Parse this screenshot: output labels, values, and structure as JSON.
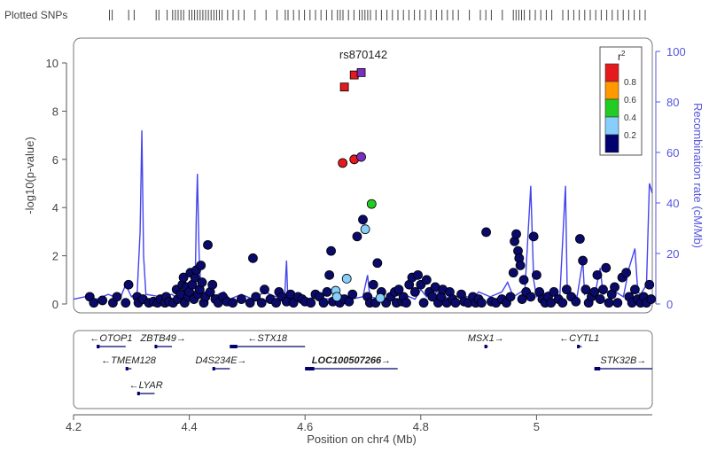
{
  "chart_data": {
    "type": "scatter",
    "strip_label": "Plotted SNPs",
    "lead_snp": "rs870142",
    "xlabel": "Position on chr4 (Mb)",
    "ylabel_left": "-log10(p-value)",
    "ylabel_right": "Recombination rate (cM/Mb)",
    "xlim": [
      4.2,
      5.2
    ],
    "ylim_left": [
      0,
      10.5
    ],
    "ylim_right": [
      0,
      105
    ],
    "x_ticks": [
      "4.2",
      "4.4",
      "4.6",
      "4.8",
      "5"
    ],
    "x_tick_values": [
      4.2,
      4.4,
      4.6,
      4.8,
      5.0
    ],
    "y_ticks_left": [
      "0",
      "2",
      "4",
      "6",
      "8",
      "10"
    ],
    "y_ticks_right": [
      "0",
      "20",
      "40",
      "60",
      "80",
      "100"
    ],
    "legend": {
      "title": "r2",
      "labels": [
        "0.8",
        "0.6",
        "0.4",
        "0.2"
      ],
      "colors": [
        "#e41a1c",
        "#ff9900",
        "#22cc22",
        "#87cefa",
        "#00006e"
      ]
    },
    "highlight_points": [
      {
        "x": 4.668,
        "y": 9.0,
        "shape": "square",
        "color": "#e41a1c"
      },
      {
        "x": 4.685,
        "y": 9.5,
        "shape": "square",
        "color": "#e41a1c"
      },
      {
        "x": 4.697,
        "y": 9.6,
        "shape": "square",
        "color": "#7b2fbe"
      },
      {
        "x": 4.665,
        "y": 5.85,
        "shape": "circle",
        "color": "#e41a1c"
      },
      {
        "x": 4.685,
        "y": 6.0,
        "shape": "circle",
        "color": "#e41a1c"
      },
      {
        "x": 4.697,
        "y": 6.1,
        "shape": "circle",
        "color": "#7b2fbe"
      },
      {
        "x": 4.715,
        "y": 4.15,
        "shape": "circle",
        "color": "#22cc22"
      },
      {
        "x": 4.704,
        "y": 3.1,
        "shape": "circle",
        "color": "#87cefa"
      },
      {
        "x": 4.672,
        "y": 1.05,
        "shape": "circle",
        "color": "#87cefa"
      },
      {
        "x": 4.653,
        "y": 0.55,
        "shape": "circle",
        "color": "#87cefa"
      },
      {
        "x": 4.655,
        "y": 0.3,
        "shape": "circle",
        "color": "#87cefa"
      },
      {
        "x": 4.73,
        "y": 0.25,
        "shape": "circle",
        "color": "#87cefa"
      }
    ],
    "background_points": [
      [
        4.228,
        0.3
      ],
      [
        4.235,
        0.05
      ],
      [
        4.25,
        0.15
      ],
      [
        4.268,
        0.05
      ],
      [
        4.275,
        0.3
      ],
      [
        4.29,
        0.05
      ],
      [
        4.295,
        0.8
      ],
      [
        4.31,
        0.3
      ],
      [
        4.312,
        0.05
      ],
      [
        4.32,
        0.2
      ],
      [
        4.33,
        0.05
      ],
      [
        4.338,
        0.1
      ],
      [
        4.345,
        0.05
      ],
      [
        4.35,
        0.2
      ],
      [
        4.358,
        0.05
      ],
      [
        4.36,
        0.3
      ],
      [
        4.365,
        0.1
      ],
      [
        4.372,
        0.05
      ],
      [
        4.378,
        0.6
      ],
      [
        4.38,
        0.2
      ],
      [
        4.385,
        0.4
      ],
      [
        4.388,
        0.8
      ],
      [
        4.39,
        1.1
      ],
      [
        4.392,
        0.05
      ],
      [
        4.395,
        0.7
      ],
      [
        4.398,
        0.3
      ],
      [
        4.4,
        0.5
      ],
      [
        4.402,
        1.3
      ],
      [
        4.405,
        0.8
      ],
      [
        4.408,
        0.2
      ],
      [
        4.41,
        1.1
      ],
      [
        4.412,
        1.4
      ],
      [
        4.415,
        0.4
      ],
      [
        4.418,
        0.6
      ],
      [
        4.42,
        1.6
      ],
      [
        4.422,
        0.9
      ],
      [
        4.425,
        0.05
      ],
      [
        4.428,
        0.3
      ],
      [
        4.432,
        2.45
      ],
      [
        4.436,
        0.5
      ],
      [
        4.44,
        0.8
      ],
      [
        4.445,
        0.2
      ],
      [
        4.45,
        0.05
      ],
      [
        4.458,
        0.3
      ],
      [
        4.465,
        0.1
      ],
      [
        4.475,
        0.05
      ],
      [
        4.49,
        0.2
      ],
      [
        4.505,
        0.05
      ],
      [
        4.51,
        1.9
      ],
      [
        4.515,
        0.3
      ],
      [
        4.525,
        0.05
      ],
      [
        4.53,
        0.6
      ],
      [
        4.54,
        0.2
      ],
      [
        4.55,
        0.05
      ],
      [
        4.555,
        0.5
      ],
      [
        4.56,
        0.3
      ],
      [
        4.568,
        0.1
      ],
      [
        4.575,
        0.4
      ],
      [
        4.58,
        0.05
      ],
      [
        4.588,
        0.3
      ],
      [
        4.595,
        0.2
      ],
      [
        4.6,
        0.1
      ],
      [
        4.61,
        0.05
      ],
      [
        4.618,
        0.4
      ],
      [
        4.625,
        0.3
      ],
      [
        4.632,
        0.05
      ],
      [
        4.638,
        0.5
      ],
      [
        4.642,
        1.2
      ],
      [
        4.645,
        2.2
      ],
      [
        4.648,
        0.1
      ],
      [
        4.66,
        0.05
      ],
      [
        4.668,
        0.2
      ],
      [
        4.676,
        0.1
      ],
      [
        4.682,
        0.4
      ],
      [
        4.69,
        2.8
      ],
      [
        4.7,
        3.5
      ],
      [
        4.708,
        0.3
      ],
      [
        4.712,
        0.05
      ],
      [
        4.718,
        0.8
      ],
      [
        4.722,
        0.05
      ],
      [
        4.725,
        1.7
      ],
      [
        4.732,
        0.5
      ],
      [
        4.74,
        0.05
      ],
      [
        4.748,
        0.3
      ],
      [
        4.755,
        0.5
      ],
      [
        4.758,
        0.05
      ],
      [
        4.762,
        0.6
      ],
      [
        4.768,
        0.1
      ],
      [
        4.77,
        0.3
      ],
      [
        4.775,
        0.05
      ],
      [
        4.78,
        0.8
      ],
      [
        4.785,
        1.1
      ],
      [
        4.79,
        0.5
      ],
      [
        4.795,
        1.2
      ],
      [
        4.8,
        0.8
      ],
      [
        4.805,
        0.05
      ],
      [
        4.81,
        1.0
      ],
      [
        4.815,
        0.5
      ],
      [
        4.82,
        0.3
      ],
      [
        4.825,
        0.7
      ],
      [
        4.83,
        0.05
      ],
      [
        4.835,
        0.3
      ],
      [
        4.838,
        0.6
      ],
      [
        4.845,
        0.05
      ],
      [
        4.85,
        0.5
      ],
      [
        4.855,
        0.2
      ],
      [
        4.86,
        0.05
      ],
      [
        4.87,
        0.4
      ],
      [
        4.875,
        0.1
      ],
      [
        4.882,
        0.05
      ],
      [
        4.89,
        0.3
      ],
      [
        4.895,
        0.05
      ],
      [
        4.9,
        0.2
      ],
      [
        4.905,
        0.05
      ],
      [
        4.913,
        2.98
      ],
      [
        4.922,
        0.1
      ],
      [
        4.93,
        0.05
      ],
      [
        4.94,
        0.2
      ],
      [
        4.948,
        0.05
      ],
      [
        4.955,
        0.3
      ],
      [
        4.96,
        1.3
      ],
      [
        4.962,
        2.6
      ],
      [
        4.965,
        2.9
      ],
      [
        4.968,
        2.2
      ],
      [
        4.97,
        1.9
      ],
      [
        4.972,
        1.6
      ],
      [
        4.975,
        0.2
      ],
      [
        4.978,
        1.0
      ],
      [
        4.982,
        0.5
      ],
      [
        4.99,
        0.3
      ],
      [
        4.995,
        2.8
      ],
      [
        5.0,
        1.2
      ],
      [
        5.005,
        0.5
      ],
      [
        5.01,
        0.2
      ],
      [
        5.015,
        0.05
      ],
      [
        5.02,
        0.3
      ],
      [
        5.025,
        0.05
      ],
      [
        5.03,
        0.5
      ],
      [
        5.038,
        0.2
      ],
      [
        5.045,
        0.05
      ],
      [
        5.052,
        0.6
      ],
      [
        5.06,
        0.3
      ],
      [
        5.068,
        0.1
      ],
      [
        5.075,
        2.7
      ],
      [
        5.08,
        1.8
      ],
      [
        5.085,
        0.6
      ],
      [
        5.09,
        0.05
      ],
      [
        5.095,
        0.3
      ],
      [
        5.1,
        0.5
      ],
      [
        5.105,
        1.2
      ],
      [
        5.11,
        0.2
      ],
      [
        5.115,
        0.6
      ],
      [
        5.12,
        1.5
      ],
      [
        5.125,
        0.05
      ],
      [
        5.13,
        0.4
      ],
      [
        5.135,
        0.7
      ],
      [
        5.14,
        0.05
      ],
      [
        5.148,
        1.1
      ],
      [
        5.155,
        1.3
      ],
      [
        5.16,
        0.3
      ],
      [
        5.165,
        0.05
      ],
      [
        5.17,
        0.6
      ],
      [
        5.175,
        0.2
      ],
      [
        5.18,
        0.05
      ],
      [
        5.185,
        0.3
      ],
      [
        5.19,
        0.05
      ],
      [
        5.195,
        0.8
      ],
      [
        5.198,
        0.2
      ]
    ],
    "recombination": [
      [
        4.2,
        0.2
      ],
      [
        4.22,
        0.3
      ],
      [
        4.24,
        0.2
      ],
      [
        4.26,
        0.4
      ],
      [
        4.28,
        0.2
      ],
      [
        4.29,
        0.8
      ],
      [
        4.3,
        0.3
      ],
      [
        4.31,
        0.5
      ],
      [
        4.315,
        3.0
      ],
      [
        4.318,
        7.2
      ],
      [
        4.321,
        2.0
      ],
      [
        4.325,
        0.4
      ],
      [
        4.35,
        0.3
      ],
      [
        4.37,
        0.4
      ],
      [
        4.38,
        0.2
      ],
      [
        4.39,
        1.0
      ],
      [
        4.395,
        0.3
      ],
      [
        4.41,
        0.5
      ],
      [
        4.412,
        3.5
      ],
      [
        4.414,
        5.4
      ],
      [
        4.417,
        2.0
      ],
      [
        4.42,
        0.6
      ],
      [
        4.44,
        0.3
      ],
      [
        4.46,
        0.5
      ],
      [
        4.47,
        0.2
      ],
      [
        4.49,
        0.4
      ],
      [
        4.51,
        0.2
      ],
      [
        4.53,
        0.5
      ],
      [
        4.55,
        0.3
      ],
      [
        4.565,
        0.4
      ],
      [
        4.568,
        1.8
      ],
      [
        4.57,
        0.4
      ],
      [
        4.58,
        0.3
      ],
      [
        4.6,
        0.2
      ],
      [
        4.62,
        0.3
      ],
      [
        4.64,
        0.2
      ],
      [
        4.66,
        0.4
      ],
      [
        4.68,
        0.2
      ],
      [
        4.7,
        0.3
      ],
      [
        4.708,
        1.2
      ],
      [
        4.712,
        0.3
      ],
      [
        4.73,
        0.2
      ],
      [
        4.75,
        0.3
      ],
      [
        4.77,
        0.4
      ],
      [
        4.79,
        0.2
      ],
      [
        4.8,
        0.6
      ],
      [
        4.81,
        0.3
      ],
      [
        4.83,
        0.5
      ],
      [
        4.85,
        0.2
      ],
      [
        4.87,
        0.4
      ],
      [
        4.89,
        0.2
      ],
      [
        4.9,
        0.5
      ],
      [
        4.92,
        0.3
      ],
      [
        4.94,
        0.5
      ],
      [
        4.95,
        0.9
      ],
      [
        4.96,
        0.3
      ],
      [
        4.98,
        0.6
      ],
      [
        4.99,
        4.9
      ],
      [
        4.995,
        1.0
      ],
      [
        5.0,
        0.3
      ],
      [
        5.02,
        0.5
      ],
      [
        5.04,
        0.2
      ],
      [
        5.05,
        4.9
      ],
      [
        5.053,
        0.6
      ],
      [
        5.07,
        0.3
      ],
      [
        5.08,
        1.8
      ],
      [
        5.083,
        0.4
      ],
      [
        5.09,
        0.6
      ],
      [
        5.1,
        0.3
      ],
      [
        5.11,
        1.5
      ],
      [
        5.115,
        0.4
      ],
      [
        5.13,
        0.6
      ],
      [
        5.15,
        0.3
      ],
      [
        5.16,
        1.5
      ],
      [
        5.17,
        2.3
      ],
      [
        5.175,
        0.5
      ],
      [
        5.18,
        0.4
      ],
      [
        5.19,
        0.8
      ],
      [
        5.195,
        5.0
      ],
      [
        5.2,
        4.6
      ]
    ],
    "genes": [
      {
        "name": "OTOP1",
        "label": "←OTOP1",
        "x0": 4.24,
        "x1": 4.29,
        "row": 0
      },
      {
        "name": "ZBTB49",
        "label": "ZBTB49→",
        "x0": 4.34,
        "x1": 4.37,
        "row": 0
      },
      {
        "name": "STX18",
        "label": "←STX18",
        "x0": 4.47,
        "x1": 4.6,
        "row": 0
      },
      {
        "name": "MSX1",
        "label": "MSX1→",
        "x0": 4.91,
        "x1": 4.915,
        "row": 0
      },
      {
        "name": "CYTL1",
        "label": "←CYTL1",
        "x0": 5.07,
        "x1": 5.078,
        "row": 0
      },
      {
        "name": "TMEM128",
        "label": "←TMEM128",
        "x0": 4.29,
        "x1": 4.3,
        "row": 1
      },
      {
        "name": "D4S234E",
        "label": "D4S234E→",
        "x0": 4.44,
        "x1": 4.47,
        "row": 1
      },
      {
        "name": "LOC100507266",
        "label": "LOC100507266→",
        "x0": 4.6,
        "x1": 4.76,
        "row": 1
      },
      {
        "name": "STK32B",
        "label": "STK32B→",
        "x0": 5.1,
        "x1": 5.2,
        "row": 1
      },
      {
        "name": "LYAR",
        "label": "←LYAR",
        "x0": 4.31,
        "x1": 4.34,
        "row": 2
      }
    ],
    "snp_positions": [
      4.225,
      4.23,
      4.26,
      4.27,
      4.31,
      4.315,
      4.33,
      4.34,
      4.345,
      4.35,
      4.355,
      4.36,
      4.37,
      4.375,
      4.38,
      4.385,
      4.39,
      4.395,
      4.4,
      4.405,
      4.41,
      4.415,
      4.42,
      4.425,
      4.43,
      4.44,
      4.45,
      4.46,
      4.47,
      4.49,
      4.51,
      4.53,
      4.545,
      4.55,
      4.56,
      4.57,
      4.58,
      4.59,
      4.6,
      4.61,
      4.62,
      4.63,
      4.64,
      4.645,
      4.65,
      4.66,
      4.67,
      4.68,
      4.685,
      4.69,
      4.695,
      4.7,
      4.71,
      4.72,
      4.73,
      4.74,
      4.75,
      4.76,
      4.77,
      4.78,
      4.79,
      4.8,
      4.81,
      4.82,
      4.83,
      4.84,
      4.85,
      4.86,
      4.88,
      4.9,
      4.91,
      4.92,
      4.94,
      4.96,
      4.965,
      4.97,
      4.975,
      4.98,
      4.99,
      5.0,
      5.01,
      5.02,
      5.03,
      5.05,
      5.06,
      5.07,
      5.08,
      5.09,
      5.1,
      5.11,
      5.12,
      5.13,
      5.14,
      5.15,
      5.16,
      5.17,
      5.18,
      5.19,
      5.2
    ]
  }
}
